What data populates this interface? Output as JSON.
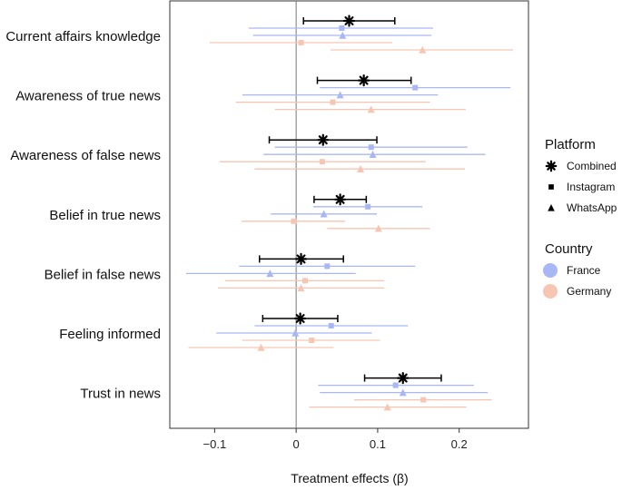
{
  "chart_data": {
    "type": "forest",
    "xlabel": "Treatment effects (β)",
    "xticks": [
      -0.1,
      0,
      0.1,
      0.2
    ],
    "xtick_labels": [
      "−0.1",
      "0",
      "0.1",
      "0.2"
    ],
    "xlim": [
      -0.155,
      0.285
    ],
    "categories": [
      "Current affairs knowledge",
      "Awareness of true news",
      "Awareness of false news",
      "Belief in true news",
      "Belief in false news",
      "Feeling informed",
      "Trust in news"
    ],
    "legend": {
      "platform_title": "Platform",
      "platform_items": [
        {
          "label": "Combined",
          "marker": "asterisk"
        },
        {
          "label": "Instagram",
          "marker": "square"
        },
        {
          "label": "WhatsApp",
          "marker": "triangle"
        }
      ],
      "country_title": "Country",
      "country_items": [
        {
          "label": "France",
          "color": "#a9b8f5"
        },
        {
          "label": "Germany",
          "color": "#f7c6b3"
        }
      ]
    },
    "series": [
      {
        "key": "combined",
        "marker": "asterisk",
        "color": "#000000",
        "points": [
          {
            "est": 0.065,
            "lo": 0.009,
            "hi": 0.121
          },
          {
            "est": 0.083,
            "lo": 0.026,
            "hi": 0.141
          },
          {
            "est": 0.033,
            "lo": -0.033,
            "hi": 0.099
          },
          {
            "est": 0.054,
            "lo": 0.022,
            "hi": 0.086
          },
          {
            "est": 0.006,
            "lo": -0.045,
            "hi": 0.058
          },
          {
            "est": 0.005,
            "lo": -0.041,
            "hi": 0.051
          },
          {
            "est": 0.131,
            "lo": 0.084,
            "hi": 0.178
          }
        ]
      },
      {
        "key": "france_instagram",
        "marker": "square",
        "color": "#a9b8f5",
        "points": [
          {
            "est": 0.056,
            "lo": -0.058,
            "hi": 0.168
          },
          {
            "est": 0.146,
            "lo": 0.029,
            "hi": 0.263
          },
          {
            "est": 0.092,
            "lo": -0.026,
            "hi": 0.21
          },
          {
            "est": 0.088,
            "lo": 0.021,
            "hi": 0.155
          },
          {
            "est": 0.038,
            "lo": -0.07,
            "hi": 0.146
          },
          {
            "est": 0.043,
            "lo": -0.051,
            "hi": 0.137
          },
          {
            "est": 0.122,
            "lo": 0.027,
            "hi": 0.218
          }
        ]
      },
      {
        "key": "france_whatsapp",
        "marker": "triangle",
        "color": "#a9b8f5",
        "points": [
          {
            "est": 0.057,
            "lo": -0.053,
            "hi": 0.166
          },
          {
            "est": 0.054,
            "lo": -0.066,
            "hi": 0.174
          },
          {
            "est": 0.094,
            "lo": -0.04,
            "hi": 0.232
          },
          {
            "est": 0.034,
            "lo": -0.031,
            "hi": 0.099
          },
          {
            "est": -0.032,
            "lo": -0.135,
            "hi": 0.073
          },
          {
            "est": -0.001,
            "lo": -0.098,
            "hi": 0.093
          },
          {
            "est": 0.131,
            "lo": 0.029,
            "hi": 0.235
          }
        ]
      },
      {
        "key": "germany_instagram",
        "marker": "square",
        "color": "#f7c6b3",
        "points": [
          {
            "est": 0.006,
            "lo": -0.106,
            "hi": 0.118
          },
          {
            "est": 0.045,
            "lo": -0.074,
            "hi": 0.164
          },
          {
            "est": 0.032,
            "lo": -0.094,
            "hi": 0.159
          },
          {
            "est": -0.003,
            "lo": -0.067,
            "hi": 0.06
          },
          {
            "est": 0.011,
            "lo": -0.087,
            "hi": 0.108
          },
          {
            "est": 0.019,
            "lo": -0.066,
            "hi": 0.103
          },
          {
            "est": 0.156,
            "lo": 0.071,
            "hi": 0.24
          }
        ]
      },
      {
        "key": "germany_whatsapp",
        "marker": "triangle",
        "color": "#f7c6b3",
        "points": [
          {
            "est": 0.155,
            "lo": 0.042,
            "hi": 0.266
          },
          {
            "est": 0.092,
            "lo": -0.026,
            "hi": 0.208
          },
          {
            "est": 0.079,
            "lo": -0.051,
            "hi": 0.207
          },
          {
            "est": 0.101,
            "lo": 0.038,
            "hi": 0.164
          },
          {
            "est": 0.006,
            "lo": -0.096,
            "hi": 0.108
          },
          {
            "est": -0.043,
            "lo": -0.132,
            "hi": 0.046
          },
          {
            "est": 0.112,
            "lo": 0.016,
            "hi": 0.209
          }
        ]
      }
    ]
  }
}
